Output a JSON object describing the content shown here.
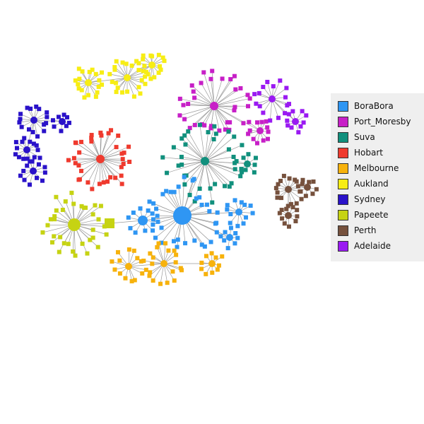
{
  "legend": {
    "items": [
      {
        "label": "BoraBora",
        "color": "#2f96f3"
      },
      {
        "label": "Port_Moresby",
        "color": "#c71fc7"
      },
      {
        "label": "Suva",
        "color": "#11907d"
      },
      {
        "label": "Hobart",
        "color": "#ef3a2e"
      },
      {
        "label": "Melbourne",
        "color": "#f7b20c"
      },
      {
        "label": "Aukland",
        "color": "#f7ed14"
      },
      {
        "label": "Sydney",
        "color": "#2a12c9"
      },
      {
        "label": "Papeete",
        "color": "#c6d313"
      },
      {
        "label": "Perth",
        "color": "#76513d"
      },
      {
        "label": "Adelaide",
        "color": "#9a1af2"
      }
    ]
  },
  "edge_color": "#9a9a9a"
}
